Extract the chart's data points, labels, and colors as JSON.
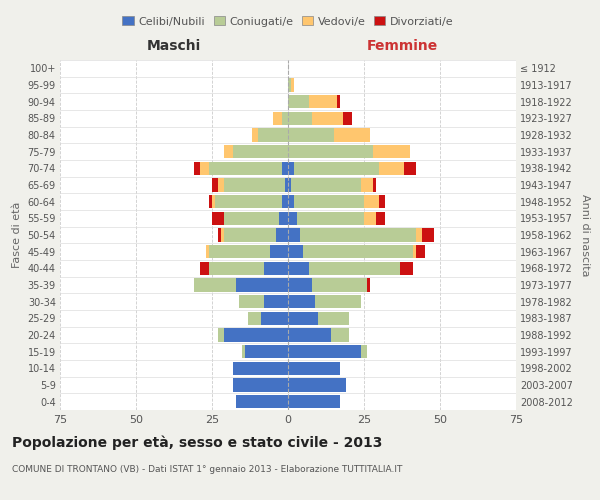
{
  "age_groups": [
    "0-4",
    "5-9",
    "10-14",
    "15-19",
    "20-24",
    "25-29",
    "30-34",
    "35-39",
    "40-44",
    "45-49",
    "50-54",
    "55-59",
    "60-64",
    "65-69",
    "70-74",
    "75-79",
    "80-84",
    "85-89",
    "90-94",
    "95-99",
    "100+"
  ],
  "birth_years": [
    "2008-2012",
    "2003-2007",
    "1998-2002",
    "1993-1997",
    "1988-1992",
    "1983-1987",
    "1978-1982",
    "1973-1977",
    "1968-1972",
    "1963-1967",
    "1958-1962",
    "1953-1957",
    "1948-1952",
    "1943-1947",
    "1938-1942",
    "1933-1937",
    "1928-1932",
    "1923-1927",
    "1918-1922",
    "1913-1917",
    "≤ 1912"
  ],
  "maschi": {
    "celibi": [
      17,
      18,
      18,
      14,
      21,
      9,
      8,
      17,
      8,
      6,
      4,
      3,
      2,
      1,
      2,
      0,
      0,
      0,
      0,
      0,
      0
    ],
    "coniugati": [
      0,
      0,
      0,
      1,
      2,
      4,
      8,
      14,
      18,
      20,
      17,
      18,
      22,
      20,
      24,
      18,
      10,
      2,
      0,
      0,
      0
    ],
    "vedovi": [
      0,
      0,
      0,
      0,
      0,
      0,
      0,
      0,
      0,
      1,
      1,
      0,
      1,
      2,
      3,
      3,
      2,
      3,
      0,
      0,
      0
    ],
    "divorziati": [
      0,
      0,
      0,
      0,
      0,
      0,
      0,
      0,
      3,
      0,
      1,
      4,
      1,
      2,
      2,
      0,
      0,
      0,
      0,
      0,
      0
    ]
  },
  "femmine": {
    "nubili": [
      17,
      19,
      17,
      24,
      14,
      10,
      9,
      8,
      7,
      5,
      4,
      3,
      2,
      1,
      2,
      0,
      0,
      0,
      0,
      0,
      0
    ],
    "coniugate": [
      0,
      0,
      0,
      2,
      6,
      10,
      15,
      18,
      30,
      36,
      38,
      22,
      23,
      23,
      28,
      28,
      15,
      8,
      7,
      1,
      0
    ],
    "vedove": [
      0,
      0,
      0,
      0,
      0,
      0,
      0,
      0,
      0,
      1,
      2,
      4,
      5,
      4,
      8,
      12,
      12,
      10,
      9,
      1,
      0
    ],
    "divorziate": [
      0,
      0,
      0,
      0,
      0,
      0,
      0,
      1,
      4,
      3,
      4,
      3,
      2,
      1,
      4,
      0,
      0,
      3,
      1,
      0,
      0
    ]
  },
  "colors": {
    "celibi": "#4472c4",
    "coniugati": "#b8cc96",
    "vedovi": "#ffc66e",
    "divorziati": "#cc1111"
  },
  "xlim": 75,
  "title": "Popolazione per età, sesso e stato civile - 2013",
  "subtitle": "COMUNE DI TRONTANO (VB) - Dati ISTAT 1° gennaio 2013 - Elaborazione TUTTITALIA.IT",
  "xlabel_left": "Maschi",
  "xlabel_right": "Femmine",
  "ylabel_left": "Fasce di età",
  "ylabel_right": "Anni di nascita",
  "bg_color": "#f0f0eb",
  "plot_bg_color": "#ffffff"
}
